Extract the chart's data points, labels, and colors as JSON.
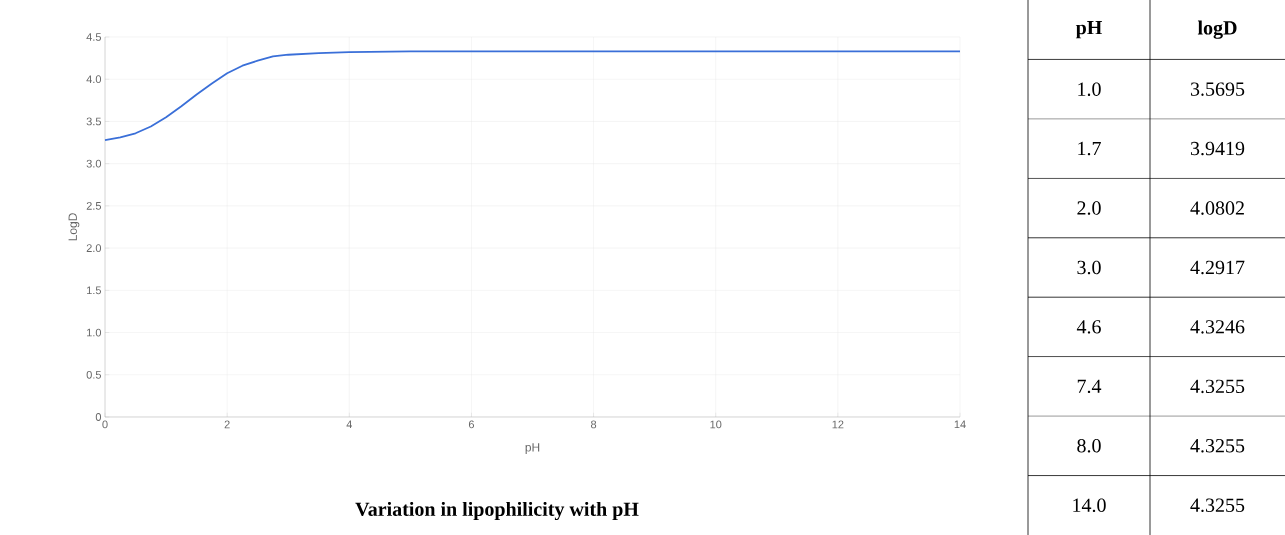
{
  "chart_data": [
    {
      "type": "line",
      "title": "Variation in lipophilicity with pH",
      "xlabel": "pH",
      "ylabel": "LogD",
      "xlim": [
        0,
        14
      ],
      "ylim": [
        0,
        4.5
      ],
      "xticks": [
        0,
        2,
        4,
        6,
        8,
        10,
        12,
        14
      ],
      "yticks": [
        0,
        0.5,
        {
          "value": 1,
          "label": "1.0"
        },
        1.5,
        {
          "value": 2,
          "label": "2.0"
        },
        2.5,
        {
          "value": 3,
          "label": "3.0"
        },
        3.5,
        {
          "value": 4,
          "label": "4.0"
        },
        4.5
      ],
      "grid": true,
      "line_style": "solid",
      "series": [
        {
          "color": "#3a6fd8",
          "x": [
            0,
            0.25,
            0.5,
            0.75,
            1,
            1.25,
            1.5,
            1.75,
            2,
            2.25,
            2.5,
            2.75,
            3,
            3.5,
            4,
            5,
            14
          ],
          "values": [
            3.28,
            3.31,
            3.36,
            3.44,
            3.55,
            3.68,
            3.82,
            3.95,
            4.07,
            4.16,
            4.22,
            4.27,
            4.29,
            4.31,
            4.32,
            4.33,
            4.33
          ]
        }
      ]
    },
    {
      "type": "other",
      "annotations": [
        "pH",
        "logD",
        "1.0",
        "3.5695",
        "1.7",
        "3.9419",
        "2.0",
        "4.0802",
        "3.0",
        "4.2917",
        "4.6",
        "4.3246",
        "7.4",
        "4.3255",
        "8.0",
        "4.3255",
        "14.0",
        "4.3255"
      ]
    }
  ]
}
